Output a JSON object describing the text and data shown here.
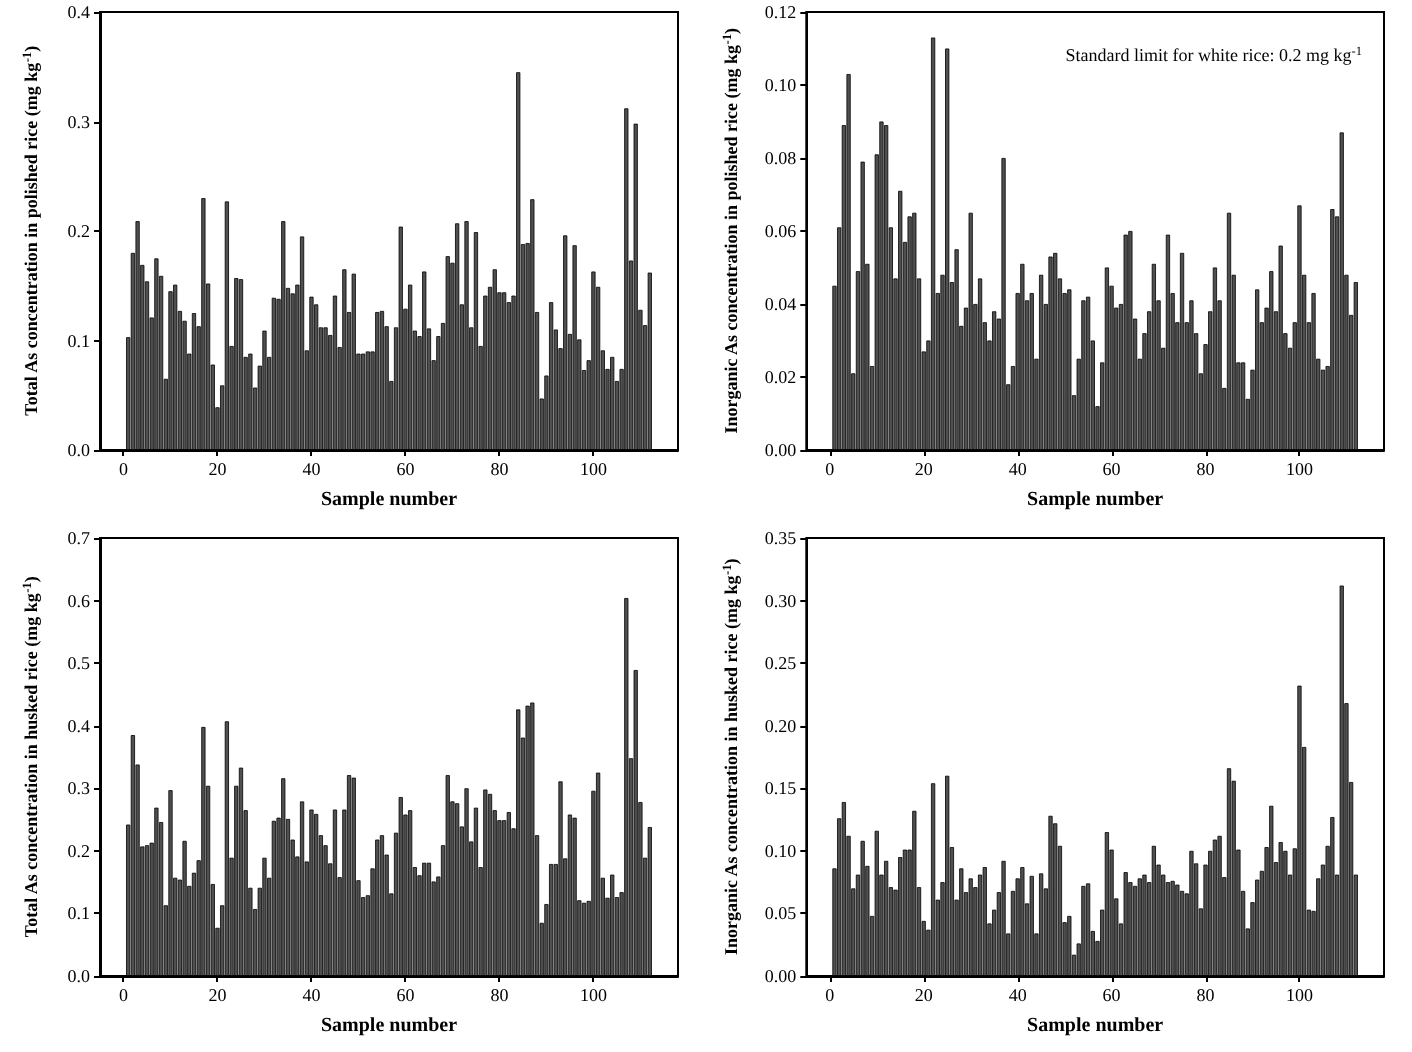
{
  "chart_data": [
    {
      "type": "bar",
      "xlabel": "Sample number",
      "ylabel": "Total As concentration in polished rice (mg kg$^{-1}$)",
      "color": "#505050",
      "x": [
        1,
        2,
        3,
        4,
        5,
        6,
        7,
        8,
        9,
        10,
        11,
        12,
        13,
        14,
        15,
        16,
        17,
        18,
        19,
        20,
        21,
        22,
        23,
        24,
        25,
        26,
        27,
        28,
        29,
        30,
        31,
        32,
        33,
        34,
        35,
        36,
        37,
        38,
        39,
        40,
        41,
        42,
        43,
        44,
        45,
        46,
        47,
        48,
        49,
        50,
        51,
        52,
        53,
        54,
        55,
        56,
        57,
        58,
        59,
        60,
        61,
        62,
        63,
        64,
        65,
        66,
        67,
        68,
        69,
        70,
        71,
        72,
        73,
        74,
        75,
        76,
        77,
        78,
        79,
        80,
        81,
        82,
        83,
        84,
        85,
        86,
        87,
        88,
        89,
        90,
        91,
        92,
        93,
        94,
        95,
        96,
        97,
        98,
        99,
        100,
        101,
        102,
        103,
        104,
        105,
        106,
        107,
        108,
        109,
        110,
        111,
        112
      ],
      "values": [
        0.103,
        0.18,
        0.209,
        0.169,
        0.154,
        0.121,
        0.175,
        0.159,
        0.065,
        0.145,
        0.151,
        0.127,
        0.118,
        0.088,
        0.125,
        0.113,
        0.23,
        0.152,
        0.078,
        0.039,
        0.059,
        0.227,
        0.095,
        0.157,
        0.156,
        0.085,
        0.088,
        0.057,
        0.077,
        0.109,
        0.085,
        0.139,
        0.138,
        0.209,
        0.148,
        0.143,
        0.151,
        0.195,
        0.091,
        0.14,
        0.133,
        0.112,
        0.112,
        0.105,
        0.141,
        0.094,
        0.165,
        0.126,
        0.161,
        0.088,
        0.088,
        0.09,
        0.09,
        0.126,
        0.127,
        0.113,
        0.063,
        0.112,
        0.204,
        0.129,
        0.151,
        0.109,
        0.104,
        0.163,
        0.111,
        0.082,
        0.104,
        0.116,
        0.177,
        0.171,
        0.207,
        0.133,
        0.209,
        0.112,
        0.199,
        0.095,
        0.141,
        0.149,
        0.165,
        0.144,
        0.144,
        0.135,
        0.141,
        0.345,
        0.188,
        0.189,
        0.229,
        0.126,
        0.047,
        0.068,
        0.135,
        0.11,
        0.093,
        0.196,
        0.106,
        0.187,
        0.101,
        0.073,
        0.082,
        0.163,
        0.149,
        0.091,
        0.074,
        0.085,
        0.063,
        0.074,
        0.312,
        0.173,
        0.298,
        0.128,
        0.114,
        0.162
      ],
      "xlim": [
        -5,
        118
      ],
      "xticks": [
        0,
        20,
        40,
        60,
        80,
        100
      ],
      "ylim": [
        0,
        0.4
      ],
      "yticks": [
        {
          "value": 0,
          "label": "0.0"
        },
        0.1,
        0.2,
        0.3,
        0.4
      ]
    },
    {
      "type": "bar",
      "xlabel": "Sample number",
      "ylabel": "Inorganic As concentration in polished rice (mg kg$^{-1}$)",
      "color": "#505050",
      "annotations": [
        "Standard limit for white rice: 0.2 mg kg$^{-1}$"
      ],
      "x": [
        1,
        2,
        3,
        4,
        5,
        6,
        7,
        8,
        9,
        10,
        11,
        12,
        13,
        14,
        15,
        16,
        17,
        18,
        19,
        20,
        21,
        22,
        23,
        24,
        25,
        26,
        27,
        28,
        29,
        30,
        31,
        32,
        33,
        34,
        35,
        36,
        37,
        38,
        39,
        40,
        41,
        42,
        43,
        44,
        45,
        46,
        47,
        48,
        49,
        50,
        51,
        52,
        53,
        54,
        55,
        56,
        57,
        58,
        59,
        60,
        61,
        62,
        63,
        64,
        65,
        66,
        67,
        68,
        69,
        70,
        71,
        72,
        73,
        74,
        75,
        76,
        77,
        78,
        79,
        80,
        81,
        82,
        83,
        84,
        85,
        86,
        87,
        88,
        89,
        90,
        91,
        92,
        93,
        94,
        95,
        96,
        97,
        98,
        99,
        100,
        101,
        102,
        103,
        104,
        105,
        106,
        107,
        108,
        109,
        110,
        111,
        112
      ],
      "values": [
        0.045,
        0.061,
        0.089,
        0.103,
        0.021,
        0.049,
        0.079,
        0.051,
        0.023,
        0.081,
        0.09,
        0.089,
        0.061,
        0.047,
        0.071,
        0.057,
        0.064,
        0.065,
        0.047,
        0.027,
        0.03,
        0.113,
        0.043,
        0.048,
        0.11,
        0.046,
        0.055,
        0.034,
        0.039,
        0.065,
        0.04,
        0.047,
        0.035,
        0.03,
        0.038,
        0.036,
        0.08,
        0.018,
        0.023,
        0.043,
        0.051,
        0.041,
        0.043,
        0.025,
        0.048,
        0.04,
        0.053,
        0.054,
        0.047,
        0.043,
        0.044,
        0.015,
        0.025,
        0.041,
        0.042,
        0.03,
        0.012,
        0.024,
        0.05,
        0.045,
        0.039,
        0.04,
        0.059,
        0.06,
        0.036,
        0.025,
        0.032,
        0.038,
        0.051,
        0.041,
        0.028,
        0.059,
        0.043,
        0.035,
        0.054,
        0.035,
        0.041,
        0.032,
        0.021,
        0.029,
        0.038,
        0.05,
        0.041,
        0.017,
        0.065,
        0.048,
        0.024,
        0.024,
        0.014,
        0.022,
        0.044,
        0.035,
        0.039,
        0.049,
        0.038,
        0.056,
        0.032,
        0.028,
        0.035,
        0.067,
        0.048,
        0.035,
        0.043,
        0.025,
        0.022,
        0.023,
        0.066,
        0.064,
        0.087,
        0.048,
        0.037,
        0.046
      ],
      "xlim": [
        -5,
        118
      ],
      "xticks": [
        0,
        20,
        40,
        60,
        80,
        100
      ],
      "ylim": [
        0,
        0.12
      ],
      "yticks": [
        {
          "value": 0,
          "label": "0.00"
        },
        {
          "value": 0.02,
          "label": "0.02"
        },
        {
          "value": 0.04,
          "label": "0.04"
        },
        {
          "value": 0.06,
          "label": "0.06"
        },
        {
          "value": 0.08,
          "label": "0.08"
        },
        {
          "value": 0.1,
          "label": "0.10"
        },
        {
          "value": 0.12,
          "label": "0.12"
        }
      ]
    },
    {
      "type": "bar",
      "xlabel": "Sample number",
      "ylabel": "Total As concentration in husked rice (mg kg$^{-1}$)",
      "color": "#505050",
      "x": [
        1,
        2,
        3,
        4,
        5,
        6,
        7,
        8,
        9,
        10,
        11,
        12,
        13,
        14,
        15,
        16,
        17,
        18,
        19,
        20,
        21,
        22,
        23,
        24,
        25,
        26,
        27,
        28,
        29,
        30,
        31,
        32,
        33,
        34,
        35,
        36,
        37,
        38,
        39,
        40,
        41,
        42,
        43,
        44,
        45,
        46,
        47,
        48,
        49,
        50,
        51,
        52,
        53,
        54,
        55,
        56,
        57,
        58,
        59,
        60,
        61,
        62,
        63,
        64,
        65,
        66,
        67,
        68,
        69,
        70,
        71,
        72,
        73,
        74,
        75,
        76,
        77,
        78,
        79,
        80,
        81,
        82,
        83,
        84,
        85,
        86,
        87,
        88,
        89,
        90,
        91,
        92,
        93,
        94,
        95,
        96,
        97,
        98,
        99,
        100,
        101,
        102,
        103,
        104,
        105,
        106,
        107,
        108,
        109,
        110,
        111,
        112
      ],
      "values": [
        0.242,
        0.385,
        0.338,
        0.207,
        0.209,
        0.213,
        0.269,
        0.246,
        0.113,
        0.297,
        0.157,
        0.154,
        0.216,
        0.144,
        0.165,
        0.185,
        0.398,
        0.304,
        0.147,
        0.077,
        0.113,
        0.407,
        0.189,
        0.304,
        0.333,
        0.265,
        0.141,
        0.107,
        0.141,
        0.189,
        0.157,
        0.248,
        0.253,
        0.316,
        0.251,
        0.218,
        0.191,
        0.279,
        0.183,
        0.266,
        0.259,
        0.225,
        0.209,
        0.18,
        0.266,
        0.158,
        0.266,
        0.321,
        0.317,
        0.153,
        0.126,
        0.129,
        0.172,
        0.218,
        0.225,
        0.194,
        0.132,
        0.229,
        0.286,
        0.258,
        0.265,
        0.174,
        0.161,
        0.181,
        0.181,
        0.151,
        0.159,
        0.209,
        0.321,
        0.279,
        0.276,
        0.239,
        0.3,
        0.215,
        0.269,
        0.174,
        0.298,
        0.291,
        0.265,
        0.249,
        0.249,
        0.262,
        0.236,
        0.426,
        0.381,
        0.432,
        0.437,
        0.225,
        0.085,
        0.115,
        0.179,
        0.179,
        0.311,
        0.188,
        0.258,
        0.253,
        0.121,
        0.117,
        0.12,
        0.296,
        0.325,
        0.157,
        0.125,
        0.162,
        0.126,
        0.134,
        0.604,
        0.348,
        0.489,
        0.278,
        0.189,
        0.238
      ],
      "xlim": [
        -5,
        118
      ],
      "xticks": [
        0,
        20,
        40,
        60,
        80,
        100
      ],
      "ylim": [
        0,
        0.7
      ],
      "yticks": [
        {
          "value": 0,
          "label": "0.0"
        },
        0.1,
        0.2,
        0.3,
        0.4,
        0.5,
        0.6,
        0.7
      ]
    },
    {
      "type": "bar",
      "xlabel": "Sample number",
      "ylabel": "Inorganic As concentration in husked rice (mg kg$^{-1}$)",
      "color": "#505050",
      "x": [
        1,
        2,
        3,
        4,
        5,
        6,
        7,
        8,
        9,
        10,
        11,
        12,
        13,
        14,
        15,
        16,
        17,
        18,
        19,
        20,
        21,
        22,
        23,
        24,
        25,
        26,
        27,
        28,
        29,
        30,
        31,
        32,
        33,
        34,
        35,
        36,
        37,
        38,
        39,
        40,
        41,
        42,
        43,
        44,
        45,
        46,
        47,
        48,
        49,
        50,
        51,
        52,
        53,
        54,
        55,
        56,
        57,
        58,
        59,
        60,
        61,
        62,
        63,
        64,
        65,
        66,
        67,
        68,
        69,
        70,
        71,
        72,
        73,
        74,
        75,
        76,
        77,
        78,
        79,
        80,
        81,
        82,
        83,
        84,
        85,
        86,
        87,
        88,
        89,
        90,
        91,
        92,
        93,
        94,
        95,
        96,
        97,
        98,
        99,
        100,
        101,
        102,
        103,
        104,
        105,
        106,
        107,
        108,
        109,
        110,
        111,
        112
      ],
      "values": [
        0.086,
        0.126,
        0.139,
        0.112,
        0.07,
        0.081,
        0.108,
        0.088,
        0.048,
        0.116,
        0.081,
        0.092,
        0.071,
        0.069,
        0.095,
        0.101,
        0.101,
        0.132,
        0.071,
        0.044,
        0.037,
        0.154,
        0.061,
        0.075,
        0.16,
        0.103,
        0.061,
        0.086,
        0.067,
        0.078,
        0.071,
        0.081,
        0.087,
        0.042,
        0.053,
        0.067,
        0.092,
        0.034,
        0.068,
        0.078,
        0.087,
        0.058,
        0.08,
        0.034,
        0.082,
        0.07,
        0.128,
        0.122,
        0.104,
        0.043,
        0.048,
        0.017,
        0.026,
        0.072,
        0.074,
        0.036,
        0.028,
        0.053,
        0.115,
        0.101,
        0.062,
        0.042,
        0.083,
        0.075,
        0.072,
        0.078,
        0.081,
        0.075,
        0.104,
        0.089,
        0.081,
        0.075,
        0.076,
        0.073,
        0.068,
        0.066,
        0.1,
        0.09,
        0.054,
        0.089,
        0.1,
        0.109,
        0.112,
        0.079,
        0.166,
        0.156,
        0.101,
        0.068,
        0.038,
        0.059,
        0.077,
        0.084,
        0.103,
        0.136,
        0.091,
        0.107,
        0.1,
        0.081,
        0.102,
        0.232,
        0.183,
        0.053,
        0.052,
        0.078,
        0.089,
        0.104,
        0.127,
        0.081,
        0.312,
        0.218,
        0.155,
        0.081
      ],
      "xlim": [
        -5,
        118
      ],
      "xticks": [
        0,
        20,
        40,
        60,
        80,
        100
      ],
      "ylim": [
        0,
        0.35
      ],
      "yticks": [
        {
          "value": 0,
          "label": "0.00"
        },
        {
          "value": 0.05,
          "label": "0.05"
        },
        {
          "value": 0.1,
          "label": "0.10"
        },
        {
          "value": 0.15,
          "label": "0.15"
        },
        {
          "value": 0.2,
          "label": "0.20"
        },
        {
          "value": 0.25,
          "label": "0.25"
        },
        {
          "value": 0.3,
          "label": "0.30"
        },
        {
          "value": 0.35,
          "label": "0.35"
        }
      ]
    }
  ]
}
